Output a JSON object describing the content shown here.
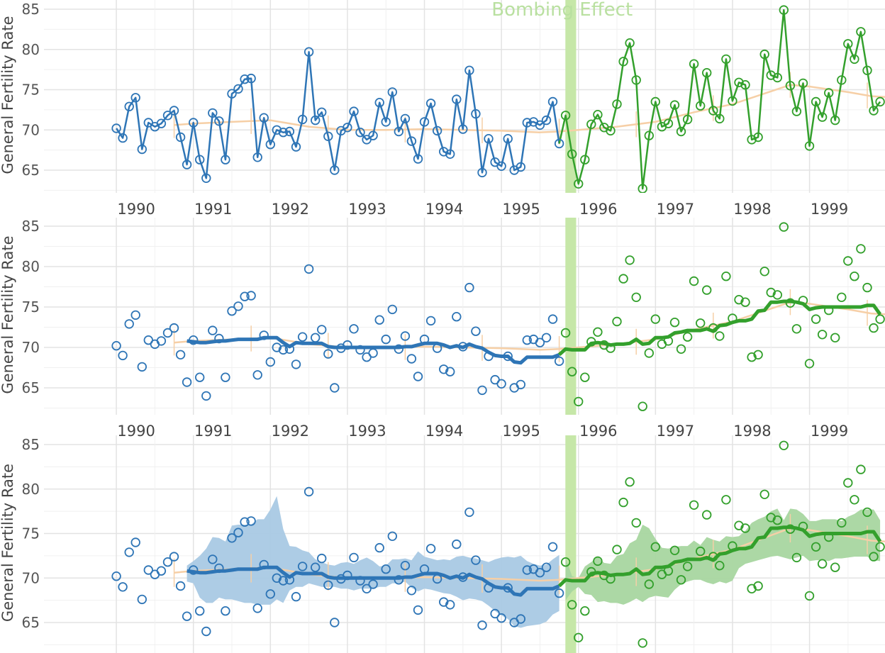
{
  "chart_data": {
    "type": "line",
    "panels": 3,
    "ylabel": "General Fertility Rate",
    "xlabel": "",
    "yticks": [
      65,
      70,
      75,
      80,
      85
    ],
    "xticks": [
      1990,
      1991,
      1992,
      1993,
      1994,
      1995,
      1996,
      1997,
      1998,
      1999
    ],
    "ylim": [
      61.5,
      86
    ],
    "xlim": [
      1989.06,
      1999.98
    ],
    "grid": true,
    "annotation": {
      "text": "Bombing Effect",
      "x_start": 1995.83,
      "x_end": 1995.97,
      "color": "#c6e7a8"
    },
    "series_colors": {
      "pre": "#2e75b6",
      "post": "#33a02c",
      "loess": "#f6cfa6",
      "band_pre": "#a9c9e4",
      "band_post": "#a8d6a0"
    },
    "series": [
      {
        "start": 1990.0,
        "step": 0.08333,
        "observed": [
          70.2,
          69.0,
          72.9,
          74.0,
          67.6,
          70.9,
          70.4,
          70.8,
          71.8,
          72.4,
          69.1,
          65.7,
          70.9,
          66.3,
          64.0,
          72.1,
          71.1,
          66.3,
          74.5,
          75.1,
          76.3,
          76.4,
          66.6,
          71.5,
          68.2,
          70.0,
          69.7,
          69.8,
          67.9,
          71.3,
          79.7,
          71.2,
          72.2,
          69.2,
          65.0,
          69.9,
          70.3,
          72.3,
          69.7,
          68.8,
          69.3,
          73.4,
          71.0,
          74.7,
          69.8,
          71.4,
          68.6,
          66.4,
          71.0,
          73.3,
          69.9,
          67.3,
          67.0,
          73.8,
          70.1,
          77.4,
          72.0,
          64.7,
          68.9,
          66.0,
          65.5,
          68.9,
          65.0,
          65.4,
          70.9,
          71.0,
          70.6,
          71.2,
          73.5,
          68.3,
          71.8,
          67.0,
          63.3,
          66.3,
          70.7,
          71.9,
          70.3,
          69.9,
          73.2,
          78.5,
          80.8,
          76.2,
          62.7,
          69.3,
          73.5,
          70.4,
          70.8,
          73.1,
          69.8,
          71.3,
          78.2,
          73.0,
          77.1,
          72.4,
          71.4,
          78.8,
          73.6,
          75.9,
          75.6,
          68.8,
          69.1,
          79.4,
          76.8,
          76.5,
          84.9,
          75.5,
          72.3,
          75.8,
          68.0,
          73.5,
          71.6,
          74.6,
          71.2,
          76.2,
          80.7,
          78.8,
          82.2,
          77.4,
          72.4,
          73.5
        ],
        "rolling_mean": [
          null,
          null,
          null,
          null,
          null,
          null,
          null,
          null,
          null,
          null,
          null,
          70.8,
          70.7,
          70.6,
          70.6,
          70.7,
          70.8,
          70.8,
          70.9,
          71.0,
          71.0,
          71.0,
          71.0,
          71.2,
          71.2,
          71.2,
          70.6,
          70.1,
          70.6,
          70.5,
          70.5,
          70.5,
          70.5,
          70.1,
          70.0,
          70.0,
          70.0,
          70.0,
          70.0,
          70.0,
          70.0,
          70.0,
          70.0,
          70.0,
          70.0,
          70.1,
          70.1,
          70.3,
          70.5,
          70.5,
          70.5,
          70.3,
          70.0,
          70.2,
          70.0,
          70.4,
          70.1,
          69.9,
          69.4,
          69.0,
          68.9,
          68.9,
          68.2,
          68.1,
          68.8,
          68.8,
          68.8,
          68.8,
          68.8,
          69.1,
          69.8,
          69.7,
          69.7,
          69.7,
          70.5,
          70.6,
          70.5,
          70.3,
          70.4,
          70.4,
          70.5,
          71.0,
          70.4,
          70.5,
          71.2,
          71.2,
          71.3,
          71.8,
          71.9,
          72.1,
          72.1,
          72.1,
          72.3,
          72.0,
          72.7,
          72.8,
          73.1,
          73.3,
          73.3,
          73.5,
          74.5,
          74.6,
          75.6,
          75.6,
          75.7,
          75.7,
          75.6,
          75.4,
          74.7,
          74.9,
          75.0,
          75.0,
          75.0,
          75.0,
          75.0,
          75.0,
          75.0,
          75.2,
          75.2,
          74.1
        ],
        "band_lower": [
          null,
          null,
          null,
          null,
          null,
          null,
          null,
          null,
          null,
          null,
          null,
          69.6,
          69.4,
          67.8,
          67.2,
          67.2,
          67.8,
          67.6,
          67.6,
          67.4,
          67.2,
          67.2,
          67.0,
          67.0,
          67.0,
          67.6,
          67.2,
          68.6,
          69.0,
          69.0,
          69.4,
          69.2,
          69.0,
          69.0,
          69.0,
          68.8,
          68.8,
          68.6,
          68.8,
          68.8,
          68.8,
          69.0,
          69.0,
          69.4,
          69.4,
          69.6,
          68.9,
          68.5,
          68.8,
          68.7,
          68.5,
          68.3,
          68.2,
          67.9,
          67.5,
          67.7,
          67.6,
          67.4,
          66.9,
          66.3,
          65.8,
          65.4,
          64.6,
          64.4,
          64.6,
          64.7,
          64.8,
          65.1,
          65.9,
          66.3,
          67.5,
          68.5,
          69.0,
          68.2,
          68.1,
          67.3,
          67.4,
          67.2,
          67.2,
          67.0,
          67.3,
          67.7,
          67.3,
          67.8,
          68.0,
          67.9,
          67.8,
          68.7,
          69.3,
          69.6,
          69.8,
          69.8,
          69.5,
          69.3,
          69.6,
          69.4,
          69.7,
          71.1,
          71.6,
          71.8,
          72.0,
          72.2,
          72.4,
          72.5,
          72.3,
          72.1,
          72.3,
          72.5,
          71.9,
          72.0,
          72.0,
          71.9,
          72.2,
          72.2,
          72.3,
          72.4,
          72.4,
          72.4,
          72.0,
          71.9
        ],
        "band_upper": [
          null,
          null,
          null,
          null,
          null,
          null,
          null,
          null,
          null,
          null,
          null,
          71.4,
          71.9,
          72.5,
          73.3,
          74.6,
          74.5,
          74.1,
          75.9,
          76.0,
          76.0,
          76.0,
          76.6,
          76.6,
          77.7,
          79.2,
          75.5,
          73.6,
          73.5,
          73.1,
          72.9,
          72.1,
          71.8,
          71.5,
          71.4,
          71.7,
          71.8,
          71.6,
          72.0,
          72.3,
          71.9,
          71.3,
          71.4,
          72.1,
          72.1,
          72.2,
          72.0,
          73.0,
          72.4,
          72.2,
          72.0,
          72.1,
          72.0,
          72.4,
          72.5,
          72.3,
          72.2,
          72.0,
          71.8,
          72.1,
          72.3,
          72.4,
          72.3,
          72.5,
          71.9,
          71.6,
          71.4,
          71.5,
          72.1,
          72.6,
          72.3,
          70.2,
          70.0,
          71.3,
          71.8,
          72.4,
          71.7,
          71.6,
          72.5,
          72.7,
          73.9,
          74.3,
          76.0,
          75.6,
          74.4,
          73.4,
          73.3,
          73.5,
          73.6,
          73.6,
          74.2,
          73.7,
          74.6,
          74.3,
          74.1,
          74.7,
          74.6,
          74.7,
          75.3,
          76.2,
          76.6,
          76.9,
          77.5,
          77.8,
          76.5,
          77.8,
          77.7,
          77.2,
          76.4,
          76.4,
          76.6,
          76.6,
          76.6,
          76.4,
          76.9,
          77.2,
          77.7,
          77.7,
          77.7,
          76.5
        ],
        "loess": {
          "x": [
            1990.75,
            1991.0,
            1991.5,
            1992.0,
            1992.5,
            1993.0,
            1993.5,
            1994.0,
            1994.5,
            1995.0,
            1995.5,
            1995.75,
            1996.0,
            1996.5,
            1997.0,
            1997.5,
            1998.0,
            1998.5,
            1998.75,
            1999.0,
            1999.5,
            1999.8,
            1999.98
          ],
          "y": [
            70.6,
            70.8,
            71.0,
            71.2,
            70.4,
            70.0,
            70.0,
            70.1,
            70.0,
            69.9,
            69.7,
            69.8,
            70.0,
            70.4,
            71.0,
            72.2,
            73.2,
            74.8,
            75.6,
            75.4,
            74.7,
            74.2,
            74.1
          ]
        }
      }
    ]
  }
}
